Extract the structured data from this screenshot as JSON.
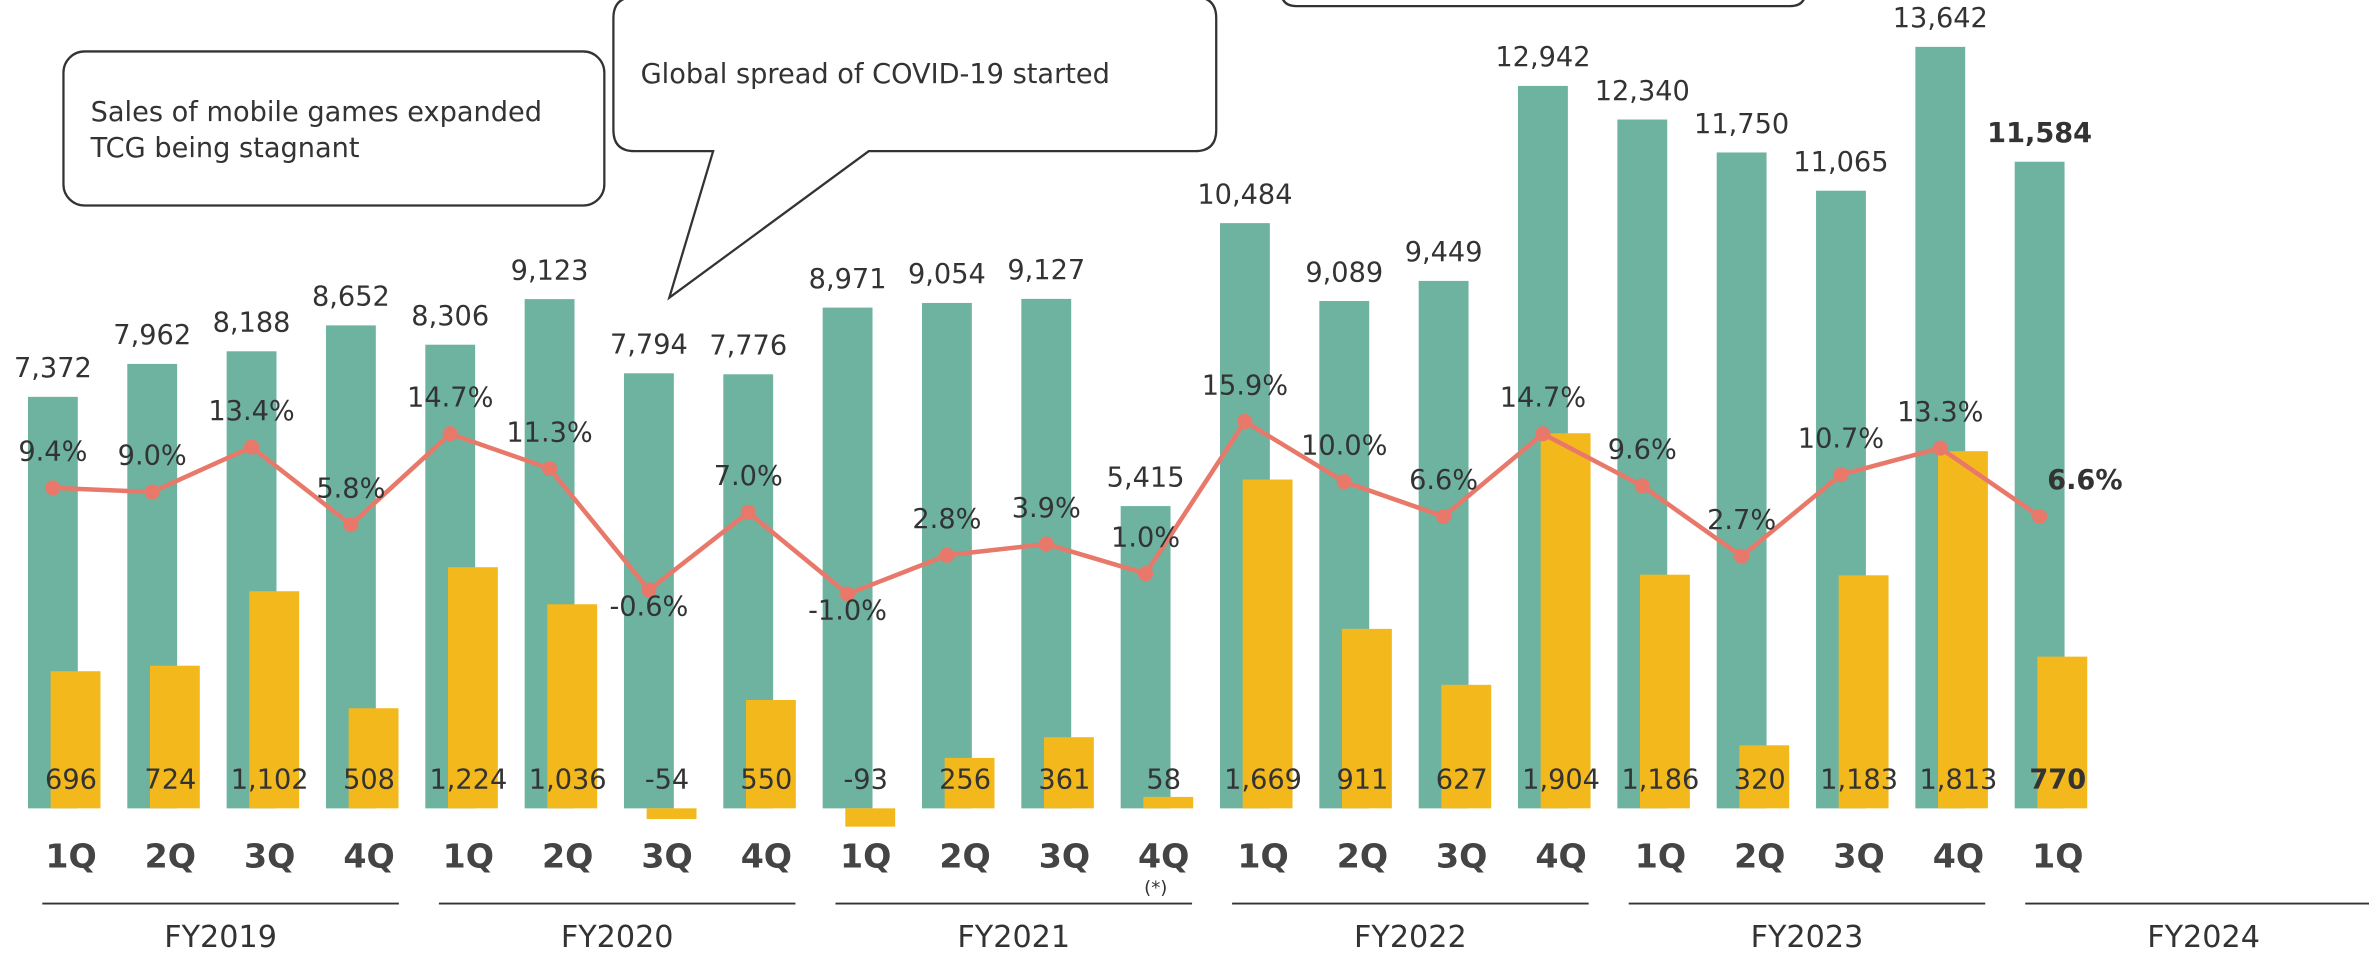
{
  "chart_data": {
    "type": "bar-line",
    "categories": [
      "1Q",
      "2Q",
      "3Q",
      "4Q",
      "1Q",
      "2Q",
      "3Q",
      "4Q",
      "1Q",
      "2Q",
      "3Q",
      "4Q",
      "1Q",
      "2Q",
      "3Q",
      "4Q",
      "1Q",
      "2Q",
      "3Q",
      "4Q",
      "1Q"
    ],
    "groups": [
      "FY2019",
      "FY2020",
      "FY2021",
      "FY2022",
      "FY2023",
      "FY2024"
    ],
    "series": [
      {
        "type": "bar",
        "color": "#6db3a0",
        "axis": "y",
        "values": [
          7372,
          7962,
          8188,
          8652,
          8306,
          9123,
          7794,
          7776,
          8971,
          9054,
          9127,
          5415,
          10484,
          9089,
          9449,
          12942,
          12340,
          11750,
          11065,
          13642,
          11584
        ],
        "value_labels": [
          "7,372",
          "7,962",
          "8,188",
          "8,652",
          "8,306",
          "9,123",
          "7,794",
          "7,776",
          "8,971",
          "9,054",
          "9,127",
          "5,415",
          "10,484",
          "9,089",
          "9,449",
          "12,942",
          "12,340",
          "11,750",
          "11,065",
          "13,642",
          "11,584"
        ]
      },
      {
        "type": "bar",
        "color": "#f2b81c",
        "axis": "y2",
        "values": [
          696,
          724,
          1102,
          508,
          1224,
          1036,
          -54,
          550,
          -93,
          256,
          361,
          58,
          1669,
          911,
          627,
          1904,
          1186,
          320,
          1183,
          1813,
          770
        ],
        "value_labels": [
          "696",
          "724",
          "1,102",
          "508",
          "1,224",
          "1,036",
          "-54",
          "550",
          "-93",
          "256",
          "361",
          "58",
          "1,669",
          "911",
          "627",
          "1,904",
          "1,186",
          "320",
          "1,183",
          "1,813",
          "770"
        ]
      },
      {
        "type": "line",
        "color": "#e8796a",
        "axis": "y3",
        "values": [
          9.4,
          9.0,
          13.4,
          5.8,
          14.7,
          11.3,
          -0.6,
          7.0,
          -1.0,
          2.8,
          3.9,
          1.0,
          15.9,
          10.0,
          6.6,
          14.7,
          9.6,
          2.7,
          10.7,
          13.3,
          6.6
        ],
        "value_labels": [
          "9.4%",
          "9.0%",
          "13.4%",
          "5.8%",
          "14.7%",
          "11.3%",
          "-0.6%",
          "7.0%",
          "-1.0%",
          "2.8%",
          "3.9%",
          "1.0%",
          "15.9%",
          "10.0%",
          "6.6%",
          "14.7%",
          "9.6%",
          "2.7%",
          "10.7%",
          "13.3%",
          "6.6%"
        ]
      }
    ],
    "ylim": [
      -677,
      14480
    ],
    "y2lim": [
      -192,
      4103
    ],
    "y3lim": [
      -25.7,
      57.2
    ],
    "annotations": [
      "Sales of mobile games expanded",
      "TCG being stagnant",
      "Global spread of COVID-19 started",
      "(*)"
    ]
  }
}
